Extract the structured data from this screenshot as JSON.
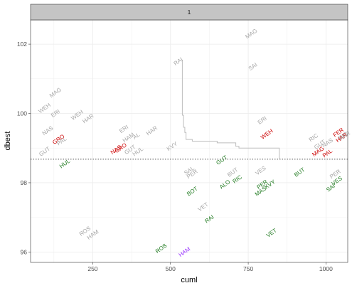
{
  "chart_data": {
    "type": "scatter",
    "facet_label": "1",
    "xlabel": "cuml",
    "ylabel": "dbest",
    "xlim": [
      50,
      1070
    ],
    "ylim": [
      95.7,
      102.7
    ],
    "x_ticks": [
      250,
      500,
      750,
      1000
    ],
    "y_ticks": [
      96,
      98,
      100,
      102
    ],
    "x_tick_labels": [
      "250",
      "500",
      "750",
      "1000"
    ],
    "y_tick_labels": [
      "96",
      "98",
      "100",
      "102"
    ],
    "grid": true,
    "reference_line": {
      "y": 98.68,
      "style": "dotted",
      "color": "#555555"
    },
    "step_line": {
      "color": "#bdbdbd",
      "points": [
        [
          538,
          101.55
        ],
        [
          538,
          99.95
        ],
        [
          542,
          99.95
        ],
        [
          542,
          99.6
        ],
        [
          546,
          99.6
        ],
        [
          546,
          99.45
        ],
        [
          550,
          99.45
        ],
        [
          550,
          99.25
        ],
        [
          570,
          99.25
        ],
        [
          570,
          99.2
        ],
        [
          650,
          99.2
        ],
        [
          650,
          99.15
        ],
        [
          710,
          99.15
        ],
        [
          710,
          99.05
        ],
        [
          720,
          99.05
        ],
        [
          720,
          99.0
        ],
        [
          850,
          99.0
        ],
        [
          850,
          98.68
        ]
      ]
    },
    "colors": {
      "gray": "#a6a6a6",
      "red": "#cc0000",
      "green": "#1f7a1f",
      "purple": "#9933ff"
    },
    "points": [
      {
        "label": "MAG",
        "x": 760,
        "y": 102.3,
        "color": "gray"
      },
      {
        "label": "RAI",
        "x": 525,
        "y": 101.5,
        "color": "gray"
      },
      {
        "label": "SAI",
        "x": 765,
        "y": 101.35,
        "color": "gray"
      },
      {
        "label": "MAG",
        "x": 130,
        "y": 100.6,
        "color": "gray"
      },
      {
        "label": "WEH",
        "x": 95,
        "y": 100.15,
        "color": "gray"
      },
      {
        "label": "ERI",
        "x": 130,
        "y": 100.0,
        "color": "gray"
      },
      {
        "label": "WEH",
        "x": 200,
        "y": 99.95,
        "color": "gray"
      },
      {
        "label": "HAR",
        "x": 235,
        "y": 99.85,
        "color": "gray"
      },
      {
        "label": "ERI",
        "x": 795,
        "y": 99.8,
        "color": "gray"
      },
      {
        "label": "NAS",
        "x": 105,
        "y": 99.5,
        "color": "gray"
      },
      {
        "label": "ERI",
        "x": 350,
        "y": 99.55,
        "color": "gray"
      },
      {
        "label": "HAR",
        "x": 440,
        "y": 99.5,
        "color": "gray"
      },
      {
        "label": "WEH",
        "x": 810,
        "y": 99.4,
        "color": "red"
      },
      {
        "label": "GRO",
        "x": 140,
        "y": 99.25,
        "color": "red"
      },
      {
        "label": "HAM",
        "x": 365,
        "y": 99.3,
        "color": "gray"
      },
      {
        "label": "AL",
        "x": 390,
        "y": 99.35,
        "color": "gray"
      },
      {
        "label": "PAL",
        "x": 150,
        "y": 99.2,
        "color": "gray"
      },
      {
        "label": "RIC",
        "x": 960,
        "y": 99.3,
        "color": "gray"
      },
      {
        "label": "GUT",
        "x": 980,
        "y": 99.1,
        "color": "gray"
      },
      {
        "label": "NAS",
        "x": 1005,
        "y": 99.15,
        "color": "gray"
      },
      {
        "label": "FER",
        "x": 1040,
        "y": 99.45,
        "color": "red"
      },
      {
        "label": "RIC",
        "x": 1055,
        "y": 99.35,
        "color": "gray"
      },
      {
        "label": "HAR",
        "x": 1050,
        "y": 99.3,
        "color": "red"
      },
      {
        "label": "HAR",
        "x": 1060,
        "y": 99.35,
        "color": "gray"
      },
      {
        "label": "KVY",
        "x": 505,
        "y": 99.05,
        "color": "gray"
      },
      {
        "label": "NAS",
        "x": 325,
        "y": 98.95,
        "color": "red"
      },
      {
        "label": "GRO",
        "x": 340,
        "y": 99.0,
        "color": "red"
      },
      {
        "label": "GUT",
        "x": 370,
        "y": 98.95,
        "color": "gray"
      },
      {
        "label": "HUL",
        "x": 395,
        "y": 98.9,
        "color": "gray"
      },
      {
        "label": "GUT",
        "x": 95,
        "y": 98.9,
        "color": "gray"
      },
      {
        "label": "MAG",
        "x": 975,
        "y": 98.9,
        "color": "red"
      },
      {
        "label": "PAL",
        "x": 1005,
        "y": 98.85,
        "color": "red"
      },
      {
        "label": "HUL",
        "x": 160,
        "y": 98.55,
        "color": "green"
      },
      {
        "label": "GUT",
        "x": 665,
        "y": 98.65,
        "color": "green"
      },
      {
        "label": "SAL",
        "x": 560,
        "y": 98.35,
        "color": "gray"
      },
      {
        "label": "PER",
        "x": 570,
        "y": 98.25,
        "color": "gray"
      },
      {
        "label": "BUT",
        "x": 700,
        "y": 98.3,
        "color": "gray"
      },
      {
        "label": "VES",
        "x": 790,
        "y": 98.35,
        "color": "gray"
      },
      {
        "label": "BUT",
        "x": 915,
        "y": 98.3,
        "color": "green"
      },
      {
        "label": "PER",
        "x": 1030,
        "y": 98.25,
        "color": "gray"
      },
      {
        "label": "RIC",
        "x": 715,
        "y": 98.1,
        "color": "green"
      },
      {
        "label": "ALO",
        "x": 675,
        "y": 97.95,
        "color": "green"
      },
      {
        "label": "BOT",
        "x": 570,
        "y": 97.75,
        "color": "green"
      },
      {
        "label": "MAS",
        "x": 790,
        "y": 97.75,
        "color": "green"
      },
      {
        "label": "PER",
        "x": 795,
        "y": 97.95,
        "color": "green"
      },
      {
        "label": "KVY",
        "x": 820,
        "y": 97.95,
        "color": "green"
      },
      {
        "label": "VES",
        "x": 1035,
        "y": 98.05,
        "color": "green"
      },
      {
        "label": "SAI",
        "x": 1015,
        "y": 97.85,
        "color": "green"
      },
      {
        "label": "VET",
        "x": 605,
        "y": 97.3,
        "color": "gray"
      },
      {
        "label": "RAI",
        "x": 625,
        "y": 96.95,
        "color": "green"
      },
      {
        "label": "ROS",
        "x": 225,
        "y": 96.6,
        "color": "gray"
      },
      {
        "label": "HAM",
        "x": 250,
        "y": 96.5,
        "color": "gray"
      },
      {
        "label": "VET",
        "x": 825,
        "y": 96.55,
        "color": "green"
      },
      {
        "label": "ROS",
        "x": 470,
        "y": 96.1,
        "color": "green"
      },
      {
        "label": "HAM",
        "x": 545,
        "y": 96.0,
        "color": "purple"
      }
    ]
  }
}
